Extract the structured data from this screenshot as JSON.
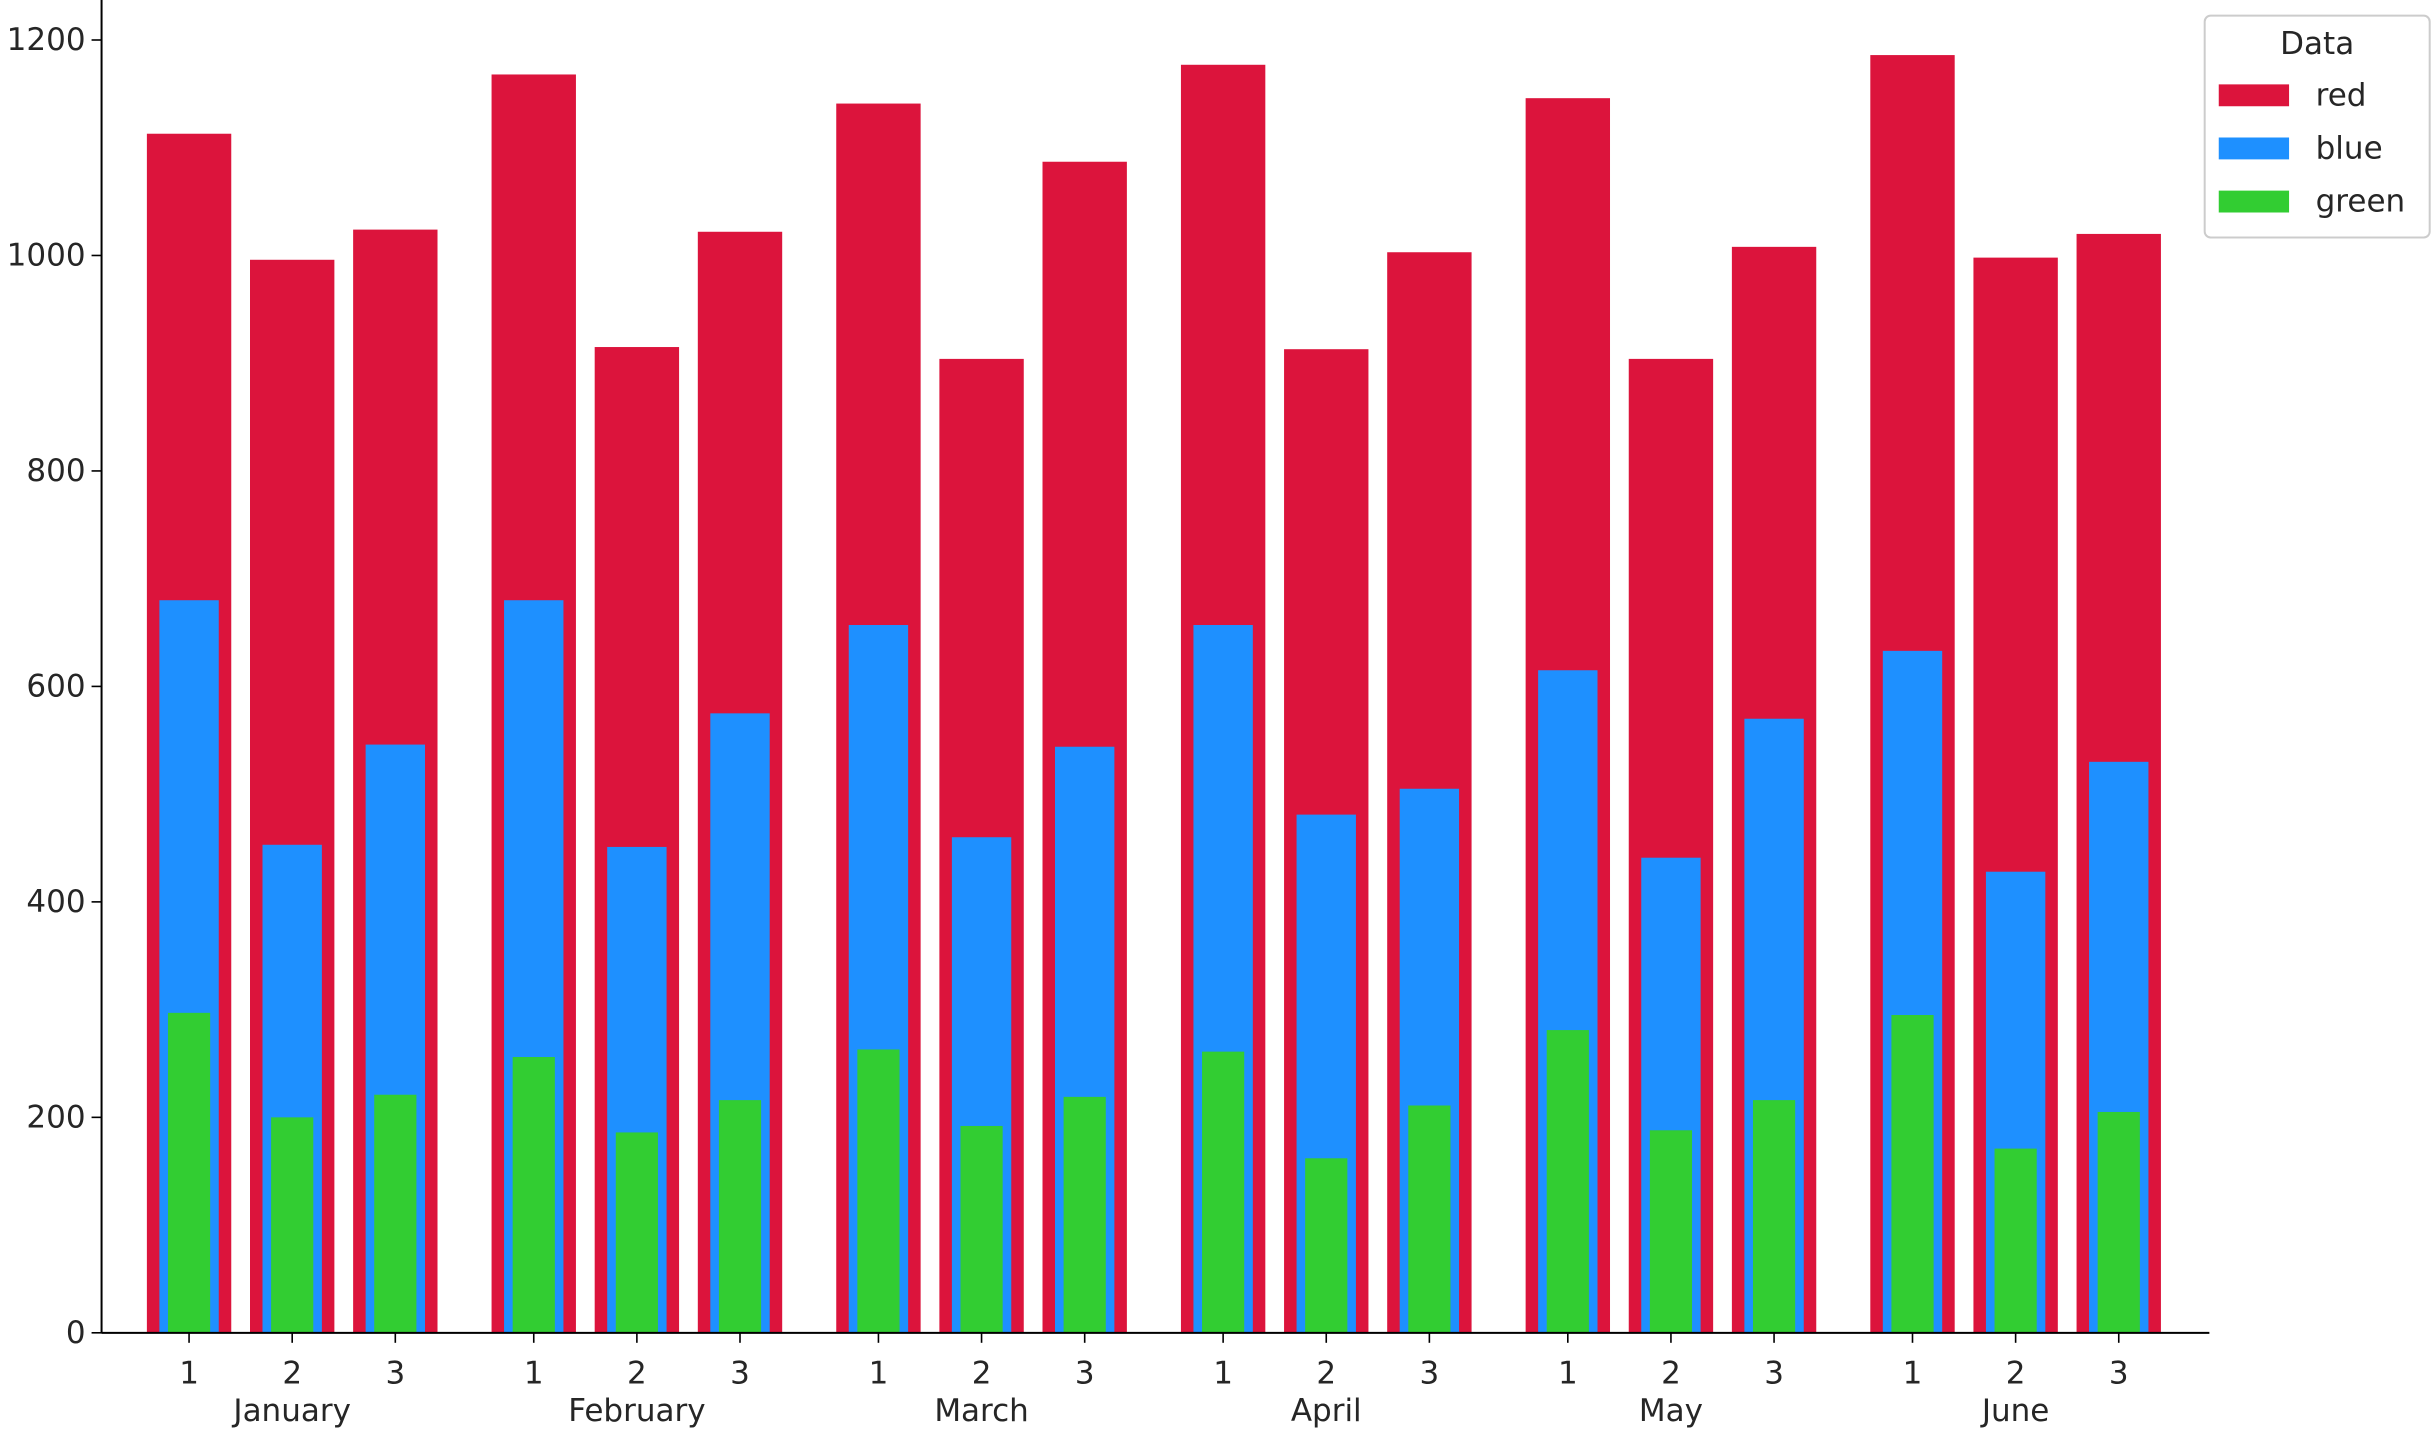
{
  "chart_data": {
    "type": "bar",
    "title": "",
    "xlabel": "",
    "ylabel": "",
    "ylim": [
      0,
      1250
    ],
    "yticks": [
      0,
      200,
      400,
      600,
      800,
      1000,
      1200
    ],
    "months": [
      "January",
      "February",
      "March",
      "April",
      "May",
      "June"
    ],
    "sub_categories": [
      "1",
      "2",
      "3"
    ],
    "grid": false,
    "legend": {
      "title": "Data",
      "placement": "top-right, outside plot area",
      "entries": [
        {
          "key": "red",
          "label": "red"
        },
        {
          "key": "blue",
          "label": "blue"
        },
        {
          "key": "green",
          "label": "green"
        }
      ]
    },
    "colors": {
      "red": "#dc143c",
      "blue": "#1e90ff",
      "green": "#32cd32"
    },
    "series": [
      {
        "name": "red",
        "values": [
          1113,
          996,
          1024,
          1168,
          915,
          1022,
          1141,
          904,
          1087,
          1177,
          913,
          1003,
          1146,
          904,
          1008,
          1186,
          998,
          1020
        ]
      },
      {
        "name": "blue",
        "values": [
          680,
          453,
          546,
          680,
          451,
          575,
          657,
          460,
          544,
          657,
          481,
          505,
          615,
          441,
          570,
          633,
          428,
          530
        ]
      },
      {
        "name": "green",
        "values": [
          297,
          200,
          221,
          256,
          186,
          216,
          263,
          192,
          219,
          261,
          162,
          211,
          281,
          188,
          216,
          295,
          171,
          205
        ]
      }
    ]
  }
}
